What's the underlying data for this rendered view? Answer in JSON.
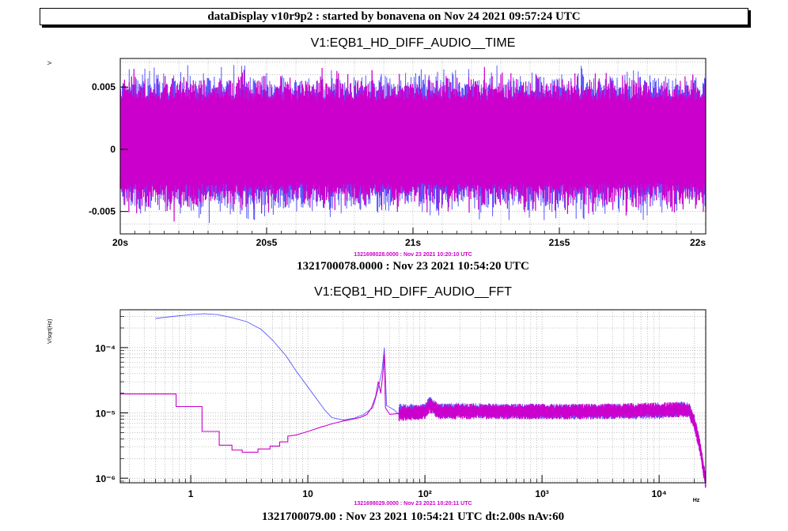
{
  "header": {
    "title": "dataDisplay v10r9p2 : started by bonavena on Nov 24 2021 09:57:24 UTC"
  },
  "colors": {
    "series_main": "#cc00cc",
    "series_ref": "#5a5aff",
    "grid": "#9a9a9a"
  },
  "chart_data": [
    {
      "type": "line",
      "title": "V1:EQB1_HD_DIFF_AUDIO__TIME",
      "ylabel": "V",
      "xlim": [
        20,
        22
      ],
      "ylim": [
        -0.0068,
        0.0073
      ],
      "x_ticks": [
        {
          "value": 20,
          "label": "20s"
        },
        {
          "value": 20.5,
          "label": "20s5"
        },
        {
          "value": 21,
          "label": "21s"
        },
        {
          "value": 21.5,
          "label": "21s5"
        },
        {
          "value": 22,
          "label": "22s"
        }
      ],
      "y_ticks": [
        {
          "value": 0.005,
          "label": "0.005"
        },
        {
          "value": 0,
          "label": "0"
        },
        {
          "value": -0.005,
          "label": "-0.005"
        }
      ],
      "grid": true,
      "series": [
        {
          "color": "#5a5aff",
          "envelope_peak": [
            -0.0057,
            0.006
          ],
          "typical_range": [
            -0.0035,
            0.0047
          ]
        },
        {
          "color": "#cc00cc",
          "envelope_peak": [
            -0.0052,
            0.0055
          ],
          "typical_range": [
            -0.0033,
            0.0045
          ]
        }
      ],
      "caption": "1321700078.0000 : Nov 23 2021 10:54:20 UTC",
      "ref_caption": "1321698028.0000 : Nov 23 2021 10:20:10 UTC"
    },
    {
      "type": "line",
      "title": "V1:EQB1_HD_DIFF_AUDIO__FFT",
      "ylabel": "V/sqrt(Hz)",
      "xlabel": "Hz",
      "x_scale": "log",
      "y_scale": "log",
      "xlim": [
        0.25,
        25000
      ],
      "ylim": [
        8.5e-07,
        0.00038
      ],
      "x_ticks": [
        {
          "value": 1,
          "label": "1"
        },
        {
          "value": 10,
          "label": "10"
        },
        {
          "value": 100,
          "label": "10²"
        },
        {
          "value": 1000,
          "label": "10³"
        },
        {
          "value": 10000,
          "label": "10⁴"
        }
      ],
      "y_ticks": [
        {
          "value": 0.0001,
          "label": "10⁻⁴"
        },
        {
          "value": 1e-05,
          "label": "10⁻⁵"
        },
        {
          "value": 1e-06,
          "label": "10⁻⁶"
        }
      ],
      "grid": true,
      "series": [
        {
          "color": "#5a5aff",
          "x": [
            0.5,
            0.7,
            1.0,
            1.3,
            1.7,
            2.2,
            3.0,
            4.0,
            5.0,
            6.5,
            8.0,
            10.0,
            12.0,
            14.0,
            16.0,
            20.0,
            25.0,
            30.0,
            36.0,
            40.0,
            43.0,
            45.0,
            47.0,
            55.0,
            70.0,
            100.0,
            110.0,
            130.0,
            200.0,
            500.0,
            1000.0,
            3000.0,
            10000.0,
            15000.0,
            18000.0,
            20000.0,
            22000.0,
            25000.0
          ],
          "y": [
            0.00028,
            0.0003,
            0.00032,
            0.00033,
            0.00032,
            0.00029,
            0.00025,
            0.00019,
            0.00013,
            7.5e-05,
            4.3e-05,
            2.5e-05,
            1.6e-05,
            1.1e-05,
            8.5e-06,
            7.8e-06,
            8.3e-06,
            9.5e-06,
            1.2e-05,
            2.4e-05,
            4.5e-05,
            0.0001,
            1.3e-05,
            1.1e-05,
            1.05e-05,
            1.05e-05,
            1.4e-05,
            1.05e-05,
            1.1e-05,
            1.05e-05,
            1.05e-05,
            1.05e-05,
            1.05e-05,
            1.15e-05,
            1.1e-05,
            7e-06,
            3.5e-06,
            8.5e-07
          ]
        },
        {
          "color": "#cc00cc",
          "x": [
            0.25,
            0.75,
            0.75,
            1.25,
            1.25,
            1.75,
            1.75,
            2.25,
            2.25,
            2.75,
            2.75,
            3.75,
            3.75,
            4.75,
            4.75,
            5.75,
            5.75,
            6.75,
            6.75,
            8.0,
            9.0,
            10.0,
            11.0,
            12.0,
            13.0,
            14.0,
            16.0,
            20.0,
            24.0,
            28.0,
            32.0,
            35.0,
            38.0,
            40.0,
            42.0,
            44.0,
            45.0,
            46.0,
            50.0,
            60.0,
            80.0,
            100.0,
            110.0,
            130.0,
            200.0,
            500.0,
            1000.0,
            3000.0,
            10000.0,
            15000.0,
            18000.0,
            20000.0,
            22000.0,
            25000.0
          ],
          "y": [
            1.95e-05,
            1.95e-05,
            1.25e-05,
            1.25e-05,
            5.2e-06,
            5.2e-06,
            3.2e-06,
            3.2e-06,
            2.7e-06,
            2.7e-06,
            2.5e-06,
            2.5e-06,
            2.8e-06,
            2.8e-06,
            3.1e-06,
            3.1e-06,
            3.6e-06,
            3.6e-06,
            4.4e-06,
            4.6e-06,
            4.9e-06,
            5.2e-06,
            5.5e-06,
            5.8e-06,
            6.1e-06,
            6.3e-06,
            6.8e-06,
            7.5e-06,
            8e-06,
            8.5e-06,
            9.5e-06,
            1.2e-05,
            1.8e-05,
            3e-05,
            2e-05,
            4.5e-05,
            8e-05,
            1.2e-05,
            9.5e-06,
            9.8e-06,
            1e-05,
            1.05e-05,
            1.3e-05,
            1.05e-05,
            1.05e-05,
            1.05e-05,
            1.05e-05,
            1.05e-05,
            1.1e-05,
            1.12e-05,
            1.1e-05,
            7e-06,
            3.5e-06,
            8.5e-07
          ]
        }
      ],
      "caption": "1321700079.00 : Nov 23 2021 10:54:21 UTC dt:2.00s nAv:60",
      "ref_caption": "1321698029.0000 : Nov 23 2021 10:20:11 UTC"
    }
  ]
}
